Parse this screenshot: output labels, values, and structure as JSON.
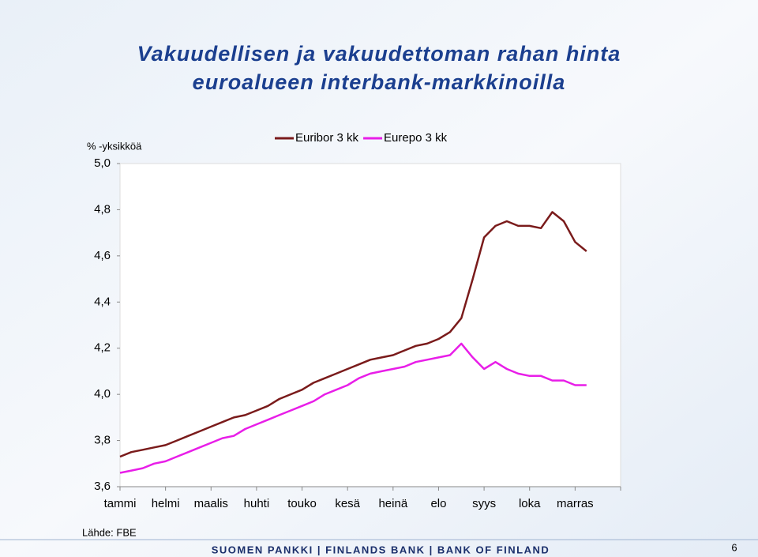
{
  "title": [
    "Vakuudellisen ja vakuudettoman rahan hinta",
    "euroalueen interbank-markkinoilla"
  ],
  "chart_data": {
    "type": "line",
    "y_label": "% -yksikköä",
    "categories": [
      "tammi",
      null,
      null,
      null,
      "helmi",
      null,
      null,
      null,
      "maalis",
      null,
      null,
      null,
      "huhti",
      null,
      null,
      null,
      "touko",
      null,
      null,
      null,
      "kesä",
      null,
      null,
      null,
      "heinä",
      null,
      null,
      null,
      "elo",
      null,
      null,
      null,
      "syys",
      null,
      null,
      null,
      "loka",
      null,
      null,
      null,
      "marras",
      null,
      null,
      null
    ],
    "series": [
      {
        "name": "Euribor 3 kk",
        "color": "#7a1b1b",
        "values": [
          3.73,
          3.75,
          3.76,
          3.77,
          3.78,
          3.8,
          3.82,
          3.84,
          3.86,
          3.88,
          3.9,
          3.91,
          3.93,
          3.95,
          3.98,
          4.0,
          4.02,
          4.05,
          4.07,
          4.09,
          4.11,
          4.13,
          4.15,
          4.16,
          4.17,
          4.19,
          4.21,
          4.22,
          4.24,
          4.27,
          4.33,
          4.5,
          4.68,
          4.73,
          4.75,
          4.73,
          4.73,
          4.72,
          4.79,
          4.75,
          4.66,
          4.62,
          null,
          null
        ]
      },
      {
        "name": "Eurepo 3 kk",
        "color": "#e81ee8",
        "values": [
          3.66,
          3.67,
          3.68,
          3.7,
          3.71,
          3.73,
          3.75,
          3.77,
          3.79,
          3.81,
          3.82,
          3.85,
          3.87,
          3.89,
          3.91,
          3.93,
          3.95,
          3.97,
          4.0,
          4.02,
          4.04,
          4.07,
          4.09,
          4.1,
          4.11,
          4.12,
          4.14,
          4.15,
          4.16,
          4.17,
          4.22,
          4.16,
          4.11,
          4.14,
          4.11,
          4.09,
          4.08,
          4.08,
          4.06,
          4.06,
          4.04,
          4.04,
          null,
          null
        ]
      }
    ],
    "ylim": [
      3.6,
      5.0
    ],
    "yticks": [
      {
        "value": 3.6,
        "label": "3,6"
      },
      {
        "value": 3.8,
        "label": "3,8"
      },
      {
        "value": 4.0,
        "label": "4,0"
      },
      {
        "value": 4.2,
        "label": "4,2"
      },
      {
        "value": 4.4,
        "label": "4,4"
      },
      {
        "value": 4.6,
        "label": "4,6"
      },
      {
        "value": 4.8,
        "label": "4,8"
      },
      {
        "value": 5.0,
        "label": "5,0"
      }
    ],
    "legend": "top",
    "source": "Lähde: FBE"
  },
  "footer": {
    "text": "SUOMEN PANKKI | FINLANDS BANK | BANK OF FINLAND",
    "page": "6"
  }
}
